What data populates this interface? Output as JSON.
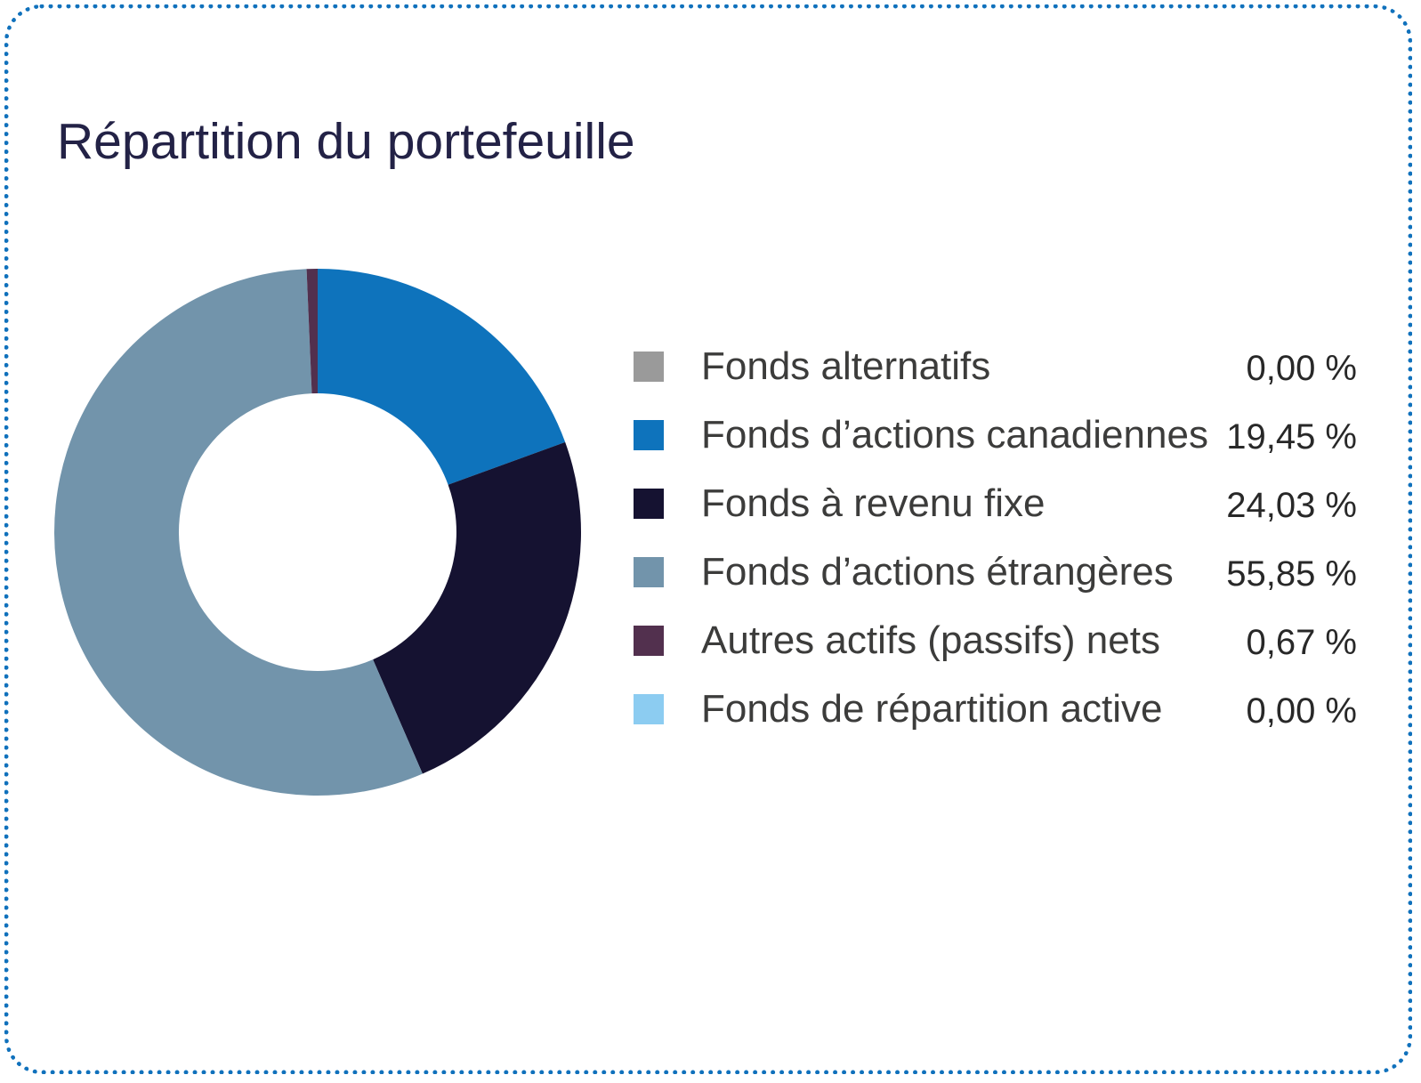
{
  "page": {
    "title": "Répartition du portefeuille",
    "border_color": "#1071BC",
    "title_color": "#232246",
    "background_color": "#FFFFFF"
  },
  "chart_data": {
    "type": "pie",
    "variant": "donut",
    "title": "Répartition du portefeuille",
    "inner_radius_ratio": 0.527,
    "start_angle_deg": 0,
    "direction": "clockwise",
    "legend_position": "right",
    "value_format": "french-percent",
    "series": [
      {
        "label": "Fonds alternatifs",
        "value": 0.0,
        "display": "0,00 %",
        "color": "#9A9A9A"
      },
      {
        "label": "Fonds d’actions canadiennes",
        "value": 19.45,
        "display": "19,45 %",
        "color": "#0E73BC"
      },
      {
        "label": "Fonds à revenu fixe",
        "value": 24.03,
        "display": "24,03 %",
        "color": "#151231"
      },
      {
        "label": "Fonds d’actions étrangères",
        "value": 55.85,
        "display": "55,85 %",
        "color": "#7294AB"
      },
      {
        "label": "Autres actifs (passifs) nets",
        "value": 0.67,
        "display": "0,67 %",
        "color": "#52304E"
      },
      {
        "label": "Fonds de répartition active",
        "value": 0.0,
        "display": "0,00 %",
        "color": "#8CCCF1"
      }
    ]
  }
}
